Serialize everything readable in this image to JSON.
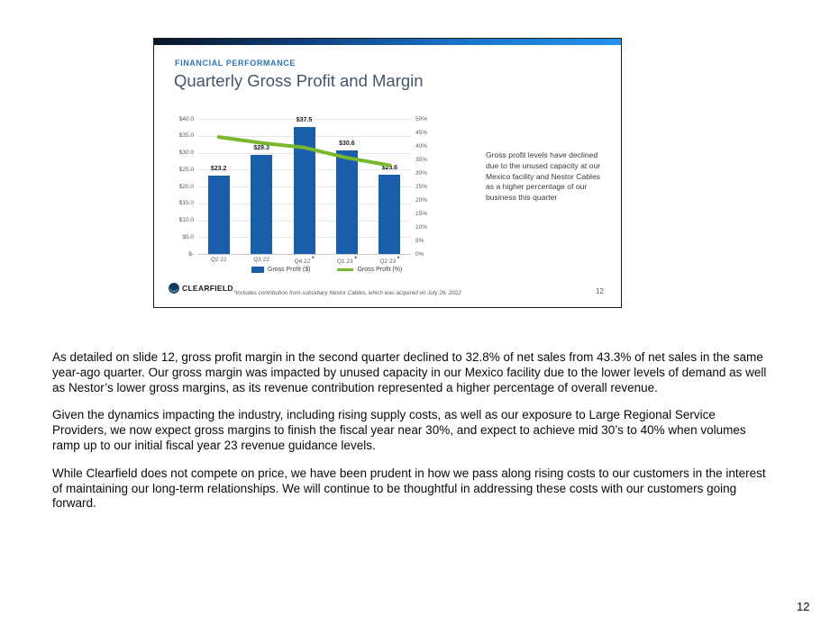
{
  "page": {
    "number": "12"
  },
  "slide": {
    "eyebrow": "FINANCIAL PERFORMANCE",
    "title": "Quarterly Gross Profit and Margin",
    "annotation": "Gross profit levels have declined due to the unused capacity at our Mexico facility and Nestor Cables as a higher percentage of our business this quarter",
    "logo_text": "CLEARFIELD",
    "footnote": "*Includes contribution from subsidiary Nestor Cables, which was acquired on July 26, 2022",
    "slide_number": "12"
  },
  "chart_data": {
    "type": "bar",
    "title": "Quarterly Gross Profit and Margin",
    "categories": [
      "Q2 22",
      "Q3 22",
      "Q4 22*",
      "Q1 23*",
      "Q2 23*"
    ],
    "series": [
      {
        "name": "Gross Profit ($)",
        "type": "bar",
        "values": [
          23.2,
          29.3,
          37.5,
          30.6,
          23.6
        ],
        "labels": [
          "$23.2",
          "$29.3",
          "$37.5",
          "$30.6",
          "$23.6"
        ],
        "color": "#1a5dab",
        "axis": "left"
      },
      {
        "name": "Gross Profit (%)",
        "type": "line",
        "values": [
          43.3,
          41.1,
          39.4,
          35.6,
          32.8
        ],
        "color": "#77b82d",
        "axis": "right"
      }
    ],
    "left_axis": {
      "ticks": [
        "$40.0",
        "$35.0",
        "$30.0",
        "$25.0",
        "$20.0",
        "$15.0",
        "$10.0",
        "$5.0",
        "$-"
      ],
      "min": 0,
      "max": 40
    },
    "right_axis": {
      "ticks": [
        "50%",
        "45%",
        "40%",
        "35%",
        "30%",
        "25%",
        "20%",
        "15%",
        "10%",
        "5%",
        "0%"
      ],
      "min": 0,
      "max": 50
    },
    "legend": [
      "Gross Profit ($)",
      "Gross Profit (%)"
    ],
    "legend_position": "bottom",
    "grid": true,
    "xlabel": "",
    "ylabel": ""
  },
  "body": {
    "paragraphs": [
      "As detailed on slide 12, gross profit margin in the second quarter declined to 32.8% of net sales from 43.3% of net sales in the same year-ago quarter. Our gross margin was impacted by unused capacity in our Mexico facility due to the lower levels of demand as well as Nestor’s lower gross margins, as its revenue contribution represented a higher percentage of overall revenue.",
      "Given the dynamics impacting the industry, including rising supply costs, as well as our exposure to Large Regional Service Providers, we now expect gross margins to finish the fiscal year near 30%, and expect to achieve mid 30’s to 40% when volumes ramp up to our initial fiscal year 23 revenue guidance levels.",
      "While Clearfield does not compete on price, we have been prudent in how we pass along rising costs to our customers in the interest of maintaining our long-term relationships. We will continue to be thoughtful in addressing these costs with our customers going forward."
    ]
  },
  "colors": {
    "bar_blue": "#1a5dab",
    "line_green": "#77b82d",
    "eyebrow_blue": "#2e74b5",
    "title_slate": "#44546a",
    "topbar_gradient_end": "#2492ee"
  }
}
